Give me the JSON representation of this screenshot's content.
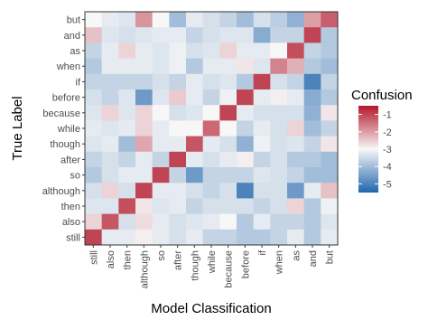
{
  "chart_data": {
    "type": "heatmap",
    "xlabel": "Model Classification",
    "ylabel": "True Label",
    "x_categories": [
      "still",
      "also",
      "then",
      "although",
      "so",
      "after",
      "though",
      "while",
      "because",
      "before",
      "if",
      "when",
      "as",
      "and",
      "but"
    ],
    "y_categories": [
      "but",
      "and",
      "as",
      "when",
      "if",
      "before",
      "because",
      "while",
      "though",
      "after",
      "so",
      "although",
      "then",
      "also",
      "still"
    ],
    "legend": {
      "title": "Confusion",
      "ticks": [
        -1,
        -2,
        -3,
        -4,
        -5
      ],
      "range": [
        -5.5,
        -0.5
      ],
      "placement": "right",
      "low_color": "#2166ac",
      "mid_color": "#f7f7f7",
      "high_color": "#b2182b"
    },
    "values": [
      [
        -3.0,
        -3.2,
        -3.3,
        -1.9,
        -3.0,
        -4.0,
        -3.2,
        -3.4,
        -3.6,
        -4.0,
        -3.4,
        -3.7,
        -4.2,
        -2.0,
        -1.3
      ],
      [
        -2.4,
        -3.3,
        -3.4,
        -3.3,
        -3.2,
        -3.2,
        -3.6,
        -3.4,
        -3.3,
        -3.3,
        -4.3,
        -3.6,
        -3.6,
        -1.0,
        -3.8
      ],
      [
        -3.6,
        -3.2,
        -2.6,
        -3.2,
        -3.3,
        -3.1,
        -3.4,
        -3.3,
        -2.6,
        -3.2,
        -3.2,
        -3.0,
        -1.1,
        -3.6,
        -3.8
      ],
      [
        -3.8,
        -3.2,
        -3.2,
        -3.2,
        -3.3,
        -3.1,
        -3.8,
        -3.2,
        -3.2,
        -2.8,
        -3.3,
        -1.7,
        -2.2,
        -3.8,
        -4.0
      ],
      [
        -3.6,
        -3.6,
        -3.6,
        -3.6,
        -3.4,
        -3.6,
        -3.2,
        -3.4,
        -3.3,
        -3.8,
        -1.0,
        -3.4,
        -3.6,
        -5.0,
        -3.6
      ],
      [
        -3.4,
        -3.6,
        -3.3,
        -4.6,
        -3.3,
        -2.5,
        -3.2,
        -3.6,
        -3.1,
        -1.0,
        -3.2,
        -2.9,
        -3.2,
        -4.3,
        -3.8
      ],
      [
        -3.3,
        -2.6,
        -3.3,
        -2.6,
        -3.0,
        -3.4,
        -3.3,
        -3.0,
        -1.0,
        -3.2,
        -3.4,
        -3.4,
        -3.4,
        -4.2,
        -2.8
      ],
      [
        -3.2,
        -3.3,
        -3.2,
        -2.6,
        -3.2,
        -3.0,
        -3.0,
        -1.4,
        -3.0,
        -3.6,
        -3.2,
        -3.4,
        -2.6,
        -4.0,
        -3.6
      ],
      [
        -3.3,
        -3.2,
        -4.0,
        -2.1,
        -3.2,
        -3.2,
        -1.2,
        -3.2,
        -3.4,
        -4.2,
        -3.1,
        -3.4,
        -3.3,
        -3.6,
        -2.8
      ],
      [
        -3.6,
        -3.4,
        -3.6,
        -3.2,
        -3.6,
        -1.0,
        -3.2,
        -3.4,
        -3.2,
        -2.9,
        -3.6,
        -3.4,
        -3.8,
        -3.8,
        -4.0
      ],
      [
        -3.8,
        -3.4,
        -3.2,
        -3.2,
        -1.0,
        -3.6,
        -4.6,
        -3.6,
        -3.6,
        -3.6,
        -3.3,
        -3.4,
        -3.6,
        -4.0,
        -4.0
      ],
      [
        -3.4,
        -2.6,
        -3.4,
        -1.0,
        -3.2,
        -3.2,
        -3.4,
        -3.6,
        -3.4,
        -5.0,
        -3.4,
        -3.4,
        -4.6,
        -3.2,
        -2.4
      ],
      [
        -3.3,
        -3.3,
        -1.1,
        -2.8,
        -3.3,
        -3.2,
        -3.6,
        -3.4,
        -3.4,
        -3.4,
        -3.6,
        -3.4,
        -2.6,
        -3.8,
        -3.1
      ],
      [
        -2.6,
        -1.2,
        -3.4,
        -2.7,
        -3.2,
        -3.4,
        -3.3,
        -3.2,
        -3.0,
        -3.8,
        -3.2,
        -3.6,
        -3.6,
        -3.8,
        -3.3
      ],
      [
        -1.0,
        -3.2,
        -3.2,
        -2.9,
        -3.2,
        -3.4,
        -3.2,
        -3.6,
        -3.6,
        -3.8,
        -3.8,
        -3.6,
        -3.2,
        -3.8,
        -3.2
      ]
    ]
  }
}
